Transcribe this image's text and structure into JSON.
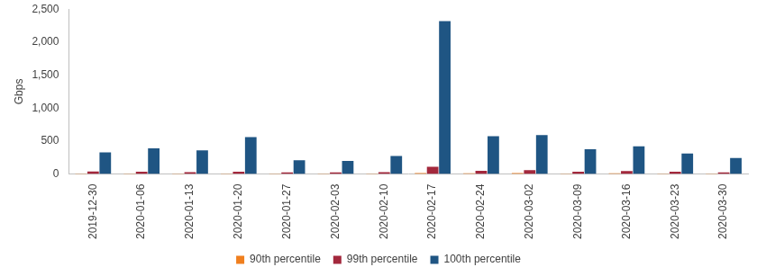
{
  "chart_data": {
    "type": "bar",
    "y_label": "Gbps",
    "categories": [
      "2019-12-30",
      "2020-01-06",
      "2020-01-13",
      "2020-01-20",
      "2020-01-27",
      "2020-02-03",
      "2020-02-10",
      "2020-02-17",
      "2020-02-24",
      "2020-03-02",
      "2020-03-09",
      "2020-03-16",
      "2020-03-23",
      "2020-03-30"
    ],
    "series": [
      {
        "name": "90th percentile",
        "color": "#f07f1e",
        "values": [
          10,
          10,
          10,
          10,
          10,
          10,
          10,
          15,
          12,
          15,
          10,
          12,
          10,
          10
        ]
      },
      {
        "name": "99th percentile",
        "color": "#a3283c",
        "values": [
          40,
          35,
          30,
          35,
          25,
          25,
          30,
          110,
          50,
          60,
          35,
          45,
          35,
          25
        ]
      },
      {
        "name": "100th percentile",
        "color": "#1f5583",
        "values": [
          330,
          390,
          360,
          560,
          210,
          200,
          275,
          2320,
          575,
          590,
          375,
          420,
          310,
          245
        ]
      }
    ],
    "ylim": [
      0,
      2500
    ],
    "yticks": [
      0,
      500,
      {
        "value": 1000,
        "label": "1,000"
      },
      {
        "value": 1500,
        "label": "1,500"
      },
      {
        "value": 2000,
        "label": "2,000"
      },
      {
        "value": 2500,
        "label": "2,500"
      }
    ],
    "grid": false,
    "legend": "bottom"
  }
}
